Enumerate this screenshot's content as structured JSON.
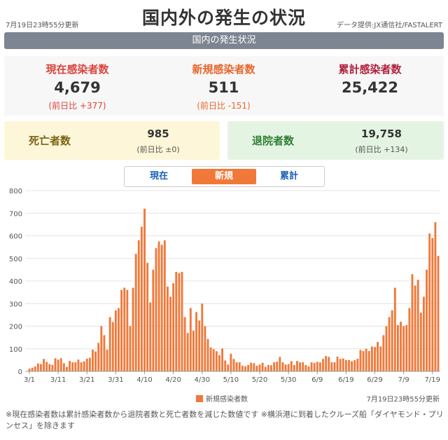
{
  "header": {
    "updated": "7月19日23時55分更新",
    "title": "国内外の発生の状況",
    "source": "データ提供:JX通信社/FASTALERT"
  },
  "banner": "国内の発生状況",
  "stats": {
    "current": {
      "label": "現在感染者数",
      "value": "4,679",
      "diff": "(前日比 +377)"
    },
    "new": {
      "label": "新規感染者数",
      "value": "511",
      "diff": "(前日比 -151)"
    },
    "total": {
      "label": "累計感染者数",
      "value": "25,422"
    }
  },
  "deaths": {
    "label": "死亡者数",
    "value": "985",
    "diff": "(前日比 ±0)"
  },
  "recovered": {
    "label": "退院者数",
    "value": "19,758",
    "diff": "(前日比 +134)"
  },
  "tabs": [
    {
      "label": "現在",
      "active": false
    },
    {
      "label": "新規",
      "active": true
    },
    {
      "label": "累計",
      "active": false
    }
  ],
  "legend": "新規感染者数",
  "chart_date": "7月19日23時55分更新",
  "footnote": "※現在感染者数は累計感染者数から退院者数と死亡者数を減じた数値です ※横浜港に到着したクルーズ船「ダイヤモンド・プリンセス」を除きます",
  "colors": {
    "bar": "#f0793a",
    "grid": "#e4e4e4",
    "axis": "#999999"
  },
  "chart_data": {
    "type": "bar",
    "title": "",
    "xlabel": "",
    "ylabel": "",
    "ylim": [
      0,
      800
    ],
    "yticks": [
      0,
      100,
      200,
      300,
      400,
      500,
      600,
      700,
      800
    ],
    "grid": true,
    "xtick_labels": [
      "3/1",
      "3/11",
      "3/21",
      "3/31",
      "4/10",
      "4/20",
      "4/30",
      "5/10",
      "5/20",
      "5/30",
      "6/9",
      "6/19",
      "6/29",
      "7/9",
      "7/19"
    ],
    "series": [
      {
        "name": "新規感染者数",
        "x_start": "3/1",
        "x_end": "7/19",
        "values": [
          12,
          16,
          22,
          35,
          32,
          55,
          42,
          32,
          28,
          58,
          52,
          58,
          36,
          20,
          46,
          40,
          40,
          52,
          40,
          44,
          56,
          60,
          96,
          88,
          126,
          200,
          160,
          96,
          240,
          218,
          270,
          280,
          360,
          370,
          360,
          200,
          370,
          520,
          580,
          640,
          720,
          480,
          305,
          450,
          545,
          575,
          560,
          580,
          375,
          330,
          390,
          440,
          435,
          440,
          240,
          170,
          280,
          180,
          262,
          225,
          300,
          200,
          143,
          106,
          98,
          89,
          72,
          101,
          48,
          30,
          78,
          55,
          40,
          40,
          25,
          22,
          28,
          38,
          36,
          25,
          30,
          38,
          20,
          28,
          27,
          40,
          43,
          64,
          40,
          30,
          32,
          45,
          28,
          46,
          40,
          40,
          28,
          22,
          40,
          37,
          42,
          40,
          55,
          68,
          64,
          40,
          40,
          65,
          55,
          57,
          50,
          50,
          45,
          50,
          56,
          95,
          90,
          100,
          90,
          110,
          108,
          130,
          110,
          160,
          200,
          240,
          270,
          370,
          205,
          220,
          200,
          205,
          280,
          430,
          380,
          405,
          260,
          330,
          450,
          610,
          590,
          660,
          511
        ]
      }
    ]
  }
}
